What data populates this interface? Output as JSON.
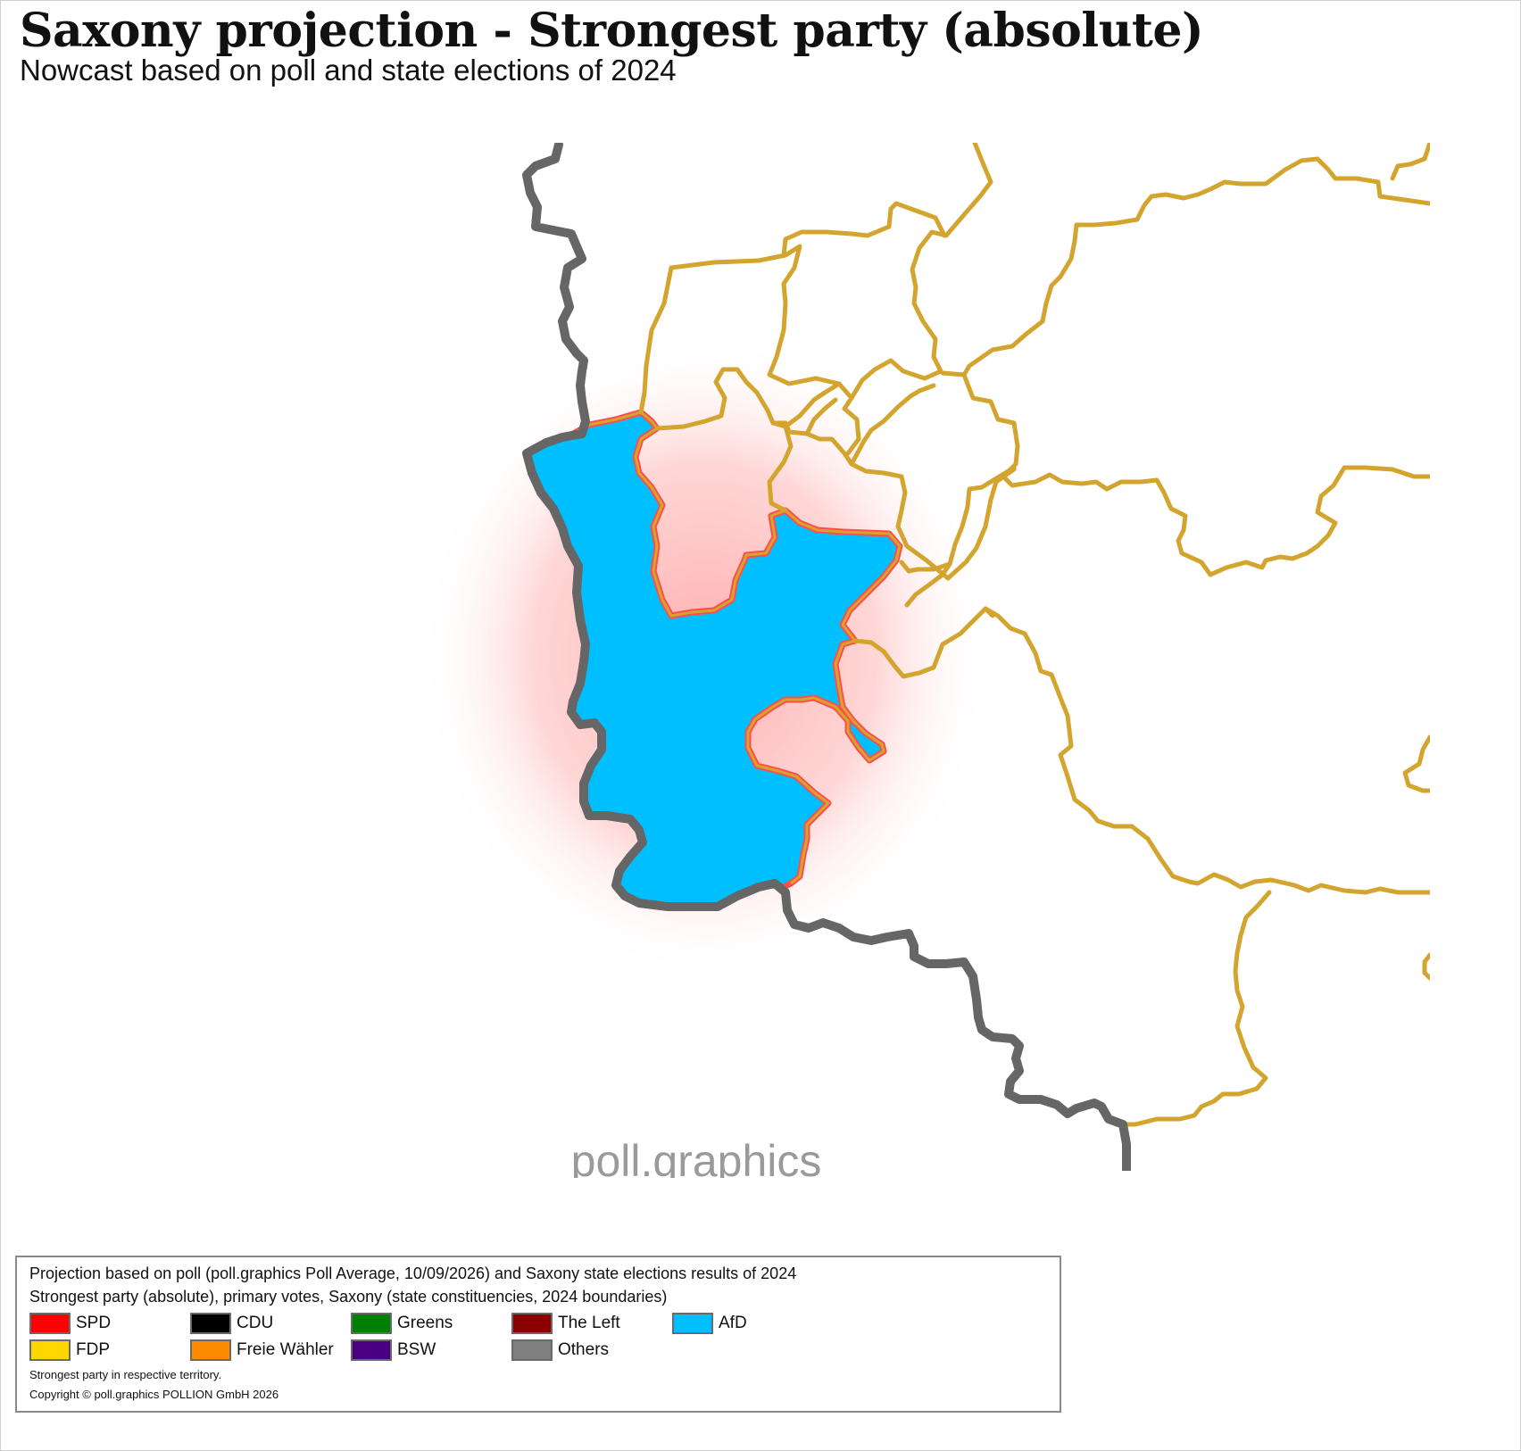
{
  "header": {
    "title": "Saxony projection - Strongest party (absolute)",
    "subtitle": "Nowcast based on poll and state elections of 2024"
  },
  "map": {
    "watermark": "poll.graphics",
    "highlight_fill": "#00BFFF",
    "highlight_glow": "#ff5a5a",
    "highlight_party": "AfD",
    "boundary_color": "#D4A52E",
    "state_border_color": "#666666"
  },
  "legend": {
    "line1": "Projection based on poll (poll.graphics Poll Average, 10/09/2026) and Saxony state elections results of 2024",
    "line2": "Strongest party (absolute), primary votes, Saxony (state constituencies, 2024 boundaries)",
    "items": [
      {
        "label": "SPD",
        "color": "#FF0000"
      },
      {
        "label": "CDU",
        "color": "#000000"
      },
      {
        "label": "Greens",
        "color": "#008000"
      },
      {
        "label": "The Left",
        "color": "#8B0000"
      },
      {
        "label": "AfD",
        "color": "#00BFFF"
      },
      {
        "label": "FDP",
        "color": "#FFD700"
      },
      {
        "label": "Freie Wähler",
        "color": "#FF8C00"
      },
      {
        "label": "BSW",
        "color": "#4B0082"
      },
      {
        "label": "Others",
        "color": "#808080"
      }
    ],
    "note": "Strongest party in respective territory.",
    "copyright": "Copyright © poll.graphics POLLION GmbH 2026"
  }
}
